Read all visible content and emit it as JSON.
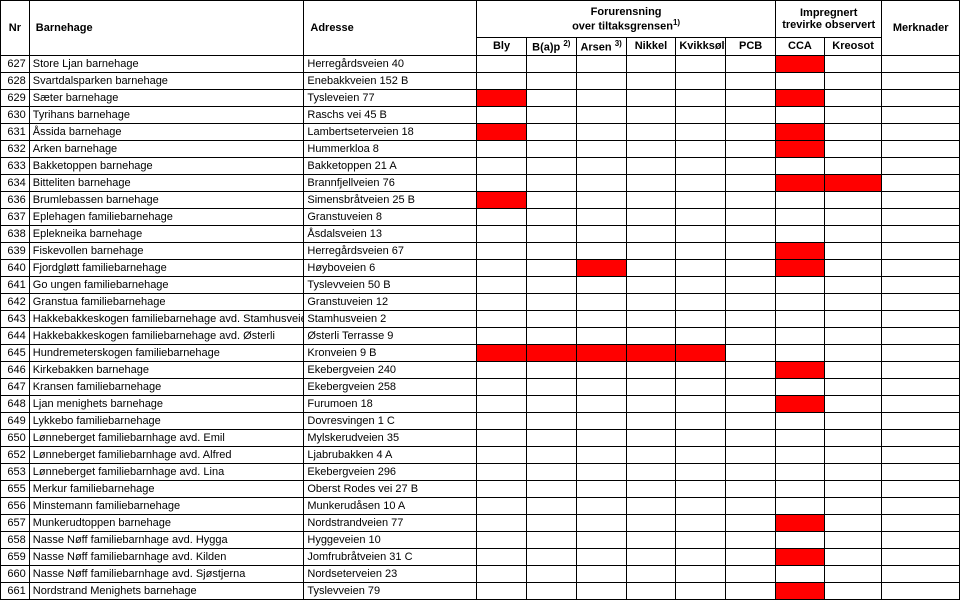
{
  "header": {
    "nr": "Nr",
    "barnehage": "Barnehage",
    "adresse": "Adresse",
    "forurensning_line1": "Forurensning",
    "forurensning_line2": "over tiltaksgrensen",
    "forurensning_sup": "1)",
    "impregnert_line1": "Impregnert",
    "impregnert_line2": "trevirke observert",
    "merknader": "Merknader",
    "sub": {
      "bly": "Bly",
      "bap": "B(a)p",
      "bap_sup": "2)",
      "arsen": "Arsen",
      "arsen_sup": "3)",
      "nikkel": "Nikkel",
      "kvikksolv": "Kvikksølv",
      "pcb": "PCB",
      "cca": "CCA",
      "kreosot": "Kreosot"
    }
  },
  "colors": {
    "hit": "#ff0000",
    "border": "#000000",
    "bg": "#ffffff"
  },
  "rows": [
    {
      "nr": "627",
      "name": "Store Ljan barnehage",
      "addr": "Herregårdsveien 40",
      "f": [
        0,
        0,
        0,
        0,
        0,
        0
      ],
      "i": [
        1,
        0
      ],
      "m": ""
    },
    {
      "nr": "628",
      "name": "Svartdalsparken barnehage",
      "addr": "Enebakkveien 152 B",
      "f": [
        0,
        0,
        0,
        0,
        0,
        0
      ],
      "i": [
        0,
        0
      ],
      "m": ""
    },
    {
      "nr": "629",
      "name": "Sæter barnehage",
      "addr": "Tysleveien 77",
      "f": [
        1,
        0,
        0,
        0,
        0,
        0
      ],
      "i": [
        1,
        0
      ],
      "m": ""
    },
    {
      "nr": "630",
      "name": "Tyrihans barnehage",
      "addr": "Raschs vei 45 B",
      "f": [
        0,
        0,
        0,
        0,
        0,
        0
      ],
      "i": [
        0,
        0
      ],
      "m": ""
    },
    {
      "nr": "631",
      "name": "Åssida barnehage",
      "addr": "Lambertseterveien 18",
      "f": [
        1,
        0,
        0,
        0,
        0,
        0
      ],
      "i": [
        1,
        0
      ],
      "m": ""
    },
    {
      "nr": "632",
      "name": "Arken barnehage",
      "addr": "Hummerkloa 8",
      "f": [
        0,
        0,
        0,
        0,
        0,
        0
      ],
      "i": [
        1,
        0
      ],
      "m": ""
    },
    {
      "nr": "633",
      "name": "Bakketoppen barnehage",
      "addr": "Bakketoppen 21 A",
      "f": [
        0,
        0,
        0,
        0,
        0,
        0
      ],
      "i": [
        0,
        0
      ],
      "m": ""
    },
    {
      "nr": "634",
      "name": "Bitteliten barnehage",
      "addr": "Brannfjellveien 76",
      "f": [
        0,
        0,
        0,
        0,
        0,
        0
      ],
      "i": [
        1,
        1
      ],
      "m": ""
    },
    {
      "nr": "636",
      "name": "Brumlebassen barnehage",
      "addr": "Simensbråtveien 25 B",
      "f": [
        1,
        0,
        0,
        0,
        0,
        0
      ],
      "i": [
        0,
        0
      ],
      "m": ""
    },
    {
      "nr": "637",
      "name": "Eplehagen familiebarnehage",
      "addr": "Granstuveien 8",
      "f": [
        0,
        0,
        0,
        0,
        0,
        0
      ],
      "i": [
        0,
        0
      ],
      "m": ""
    },
    {
      "nr": "638",
      "name": "Eplekneika barnehage",
      "addr": "Åsdalsveien 13",
      "f": [
        0,
        0,
        0,
        0,
        0,
        0
      ],
      "i": [
        0,
        0
      ],
      "m": ""
    },
    {
      "nr": "639",
      "name": "Fiskevollen barnehage",
      "addr": "Herregårdsveien 67",
      "f": [
        0,
        0,
        0,
        0,
        0,
        0
      ],
      "i": [
        1,
        0
      ],
      "m": ""
    },
    {
      "nr": "640",
      "name": "Fjordgløtt familiebarnehage",
      "addr": "Høyboveien 6",
      "f": [
        0,
        0,
        1,
        0,
        0,
        0
      ],
      "i": [
        1,
        0
      ],
      "m": ""
    },
    {
      "nr": "641",
      "name": "Go ungen familiebarnehage",
      "addr": "Tyslevveien 50 B",
      "f": [
        0,
        0,
        0,
        0,
        0,
        0
      ],
      "i": [
        0,
        0
      ],
      "m": ""
    },
    {
      "nr": "642",
      "name": "Granstua familiebarnehage",
      "addr": "Granstuveien 12",
      "f": [
        0,
        0,
        0,
        0,
        0,
        0
      ],
      "i": [
        0,
        0
      ],
      "m": ""
    },
    {
      "nr": "643",
      "name": "Hakkebakkeskogen familiebarnehage avd. Stamhusveien",
      "addr": "Stamhusveien 2",
      "f": [
        0,
        0,
        0,
        0,
        0,
        0
      ],
      "i": [
        0,
        0
      ],
      "m": ""
    },
    {
      "nr": "644",
      "name": "Hakkebakkeskogen familiebarnehage avd. Østerli",
      "addr": "Østerli Terrasse 9",
      "f": [
        0,
        0,
        0,
        0,
        0,
        0
      ],
      "i": [
        0,
        0
      ],
      "m": ""
    },
    {
      "nr": "645",
      "name": "Hundremeterskogen familiebarnehage",
      "addr": "Kronveien 9 B",
      "f": [
        1,
        1,
        1,
        1,
        1,
        0
      ],
      "i": [
        0,
        0
      ],
      "m": ""
    },
    {
      "nr": "646",
      "name": "Kirkebakken barnehage",
      "addr": "Ekebergveien 240",
      "f": [
        0,
        0,
        0,
        0,
        0,
        0
      ],
      "i": [
        1,
        0
      ],
      "m": ""
    },
    {
      "nr": "647",
      "name": "Kransen familiebarnehage",
      "addr": "Ekebergveien 258",
      "f": [
        0,
        0,
        0,
        0,
        0,
        0
      ],
      "i": [
        0,
        0
      ],
      "m": ""
    },
    {
      "nr": "648",
      "name": "Ljan menighets barnehage",
      "addr": "Furumoen 18",
      "f": [
        0,
        0,
        0,
        0,
        0,
        0
      ],
      "i": [
        1,
        0
      ],
      "m": ""
    },
    {
      "nr": "649",
      "name": "Lykkebo familiebarnehage",
      "addr": "Dovresvingen 1 C",
      "f": [
        0,
        0,
        0,
        0,
        0,
        0
      ],
      "i": [
        0,
        0
      ],
      "m": ""
    },
    {
      "nr": "650",
      "name": "Lønneberget familiebarnhage avd. Emil",
      "addr": "Mylskerudveien 35",
      "f": [
        0,
        0,
        0,
        0,
        0,
        0
      ],
      "i": [
        0,
        0
      ],
      "m": ""
    },
    {
      "nr": "652",
      "name": "Lønneberget familiebarnhage avd. Alfred",
      "addr": "Ljabrubakken 4 A",
      "f": [
        0,
        0,
        0,
        0,
        0,
        0
      ],
      "i": [
        0,
        0
      ],
      "m": ""
    },
    {
      "nr": "653",
      "name": "Lønneberget familiebarnhage avd. Lina",
      "addr": "Ekebergveien 296",
      "f": [
        0,
        0,
        0,
        0,
        0,
        0
      ],
      "i": [
        0,
        0
      ],
      "m": ""
    },
    {
      "nr": "655",
      "name": "Merkur familiebarnehage",
      "addr": "Oberst Rodes vei 27 B",
      "f": [
        0,
        0,
        0,
        0,
        0,
        0
      ],
      "i": [
        0,
        0
      ],
      "m": ""
    },
    {
      "nr": "656",
      "name": "Minstemann familiebarnehage",
      "addr": "Munkerudåsen 10 A",
      "f": [
        0,
        0,
        0,
        0,
        0,
        0
      ],
      "i": [
        0,
        0
      ],
      "m": ""
    },
    {
      "nr": "657",
      "name": "Munkerudtoppen barnehage",
      "addr": "Nordstrandveien 77",
      "f": [
        0,
        0,
        0,
        0,
        0,
        0
      ],
      "i": [
        1,
        0
      ],
      "m": ""
    },
    {
      "nr": "658",
      "name": "Nasse Nøff familiebarnhage avd. Hygga",
      "addr": "Hyggeveien 10",
      "f": [
        0,
        0,
        0,
        0,
        0,
        0
      ],
      "i": [
        0,
        0
      ],
      "m": ""
    },
    {
      "nr": "659",
      "name": "Nasse Nøff familiebarnhage avd. Kilden",
      "addr": "Jomfrubråtveien 31 C",
      "f": [
        0,
        0,
        0,
        0,
        0,
        0
      ],
      "i": [
        1,
        0
      ],
      "m": ""
    },
    {
      "nr": "660",
      "name": "Nasse Nøff familiebarnhage avd. Sjøstjerna",
      "addr": "Nordseterveien 23",
      "f": [
        0,
        0,
        0,
        0,
        0,
        0
      ],
      "i": [
        0,
        0
      ],
      "m": ""
    },
    {
      "nr": "661",
      "name": "Nordstrand Menighets barnehage",
      "addr": "Tyslevveien 79",
      "f": [
        0,
        0,
        0,
        0,
        0,
        0
      ],
      "i": [
        1,
        0
      ],
      "m": ""
    }
  ]
}
